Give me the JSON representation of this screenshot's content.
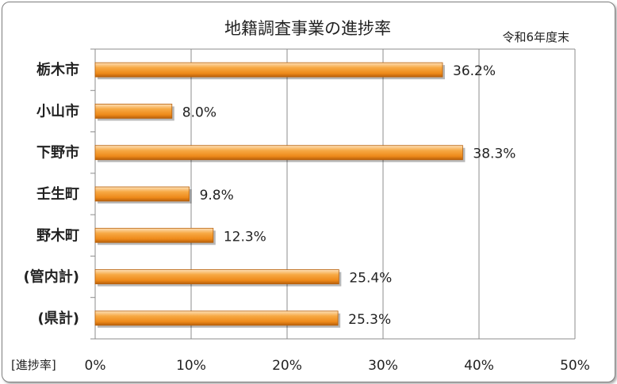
{
  "chart_data": {
    "type": "bar",
    "orientation": "horizontal",
    "title": "地籍調査事業の進捗率",
    "subtitle": "令和6年度末",
    "xlabel": "[進捗率]",
    "ylabel": "",
    "xlim": [
      0,
      50
    ],
    "x_ticks": [
      "0%",
      "10%",
      "20%",
      "30%",
      "40%",
      "50%"
    ],
    "grid": true,
    "categories": [
      "栃木市",
      "小山市",
      "下野市",
      "壬生町",
      "野木町",
      "(管内計)",
      "(県計)"
    ],
    "values": [
      36.2,
      8.0,
      38.3,
      9.8,
      12.3,
      25.4,
      25.3
    ],
    "data_labels": [
      "36.2%",
      "8.0%",
      "38.3%",
      "9.8%",
      "12.3%",
      "25.4%",
      "25.3%"
    ],
    "colors": {
      "bar_light": "#fbc98a",
      "bar_mid": "#f3931f",
      "bar_dark": "#b8600a",
      "grid": "#8c8c8c"
    }
  }
}
